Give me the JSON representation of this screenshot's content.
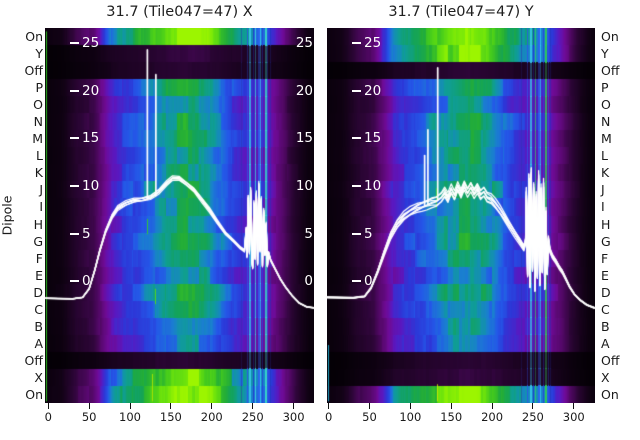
{
  "figure": {
    "background": "#ffffff",
    "ylabel": "Dipole",
    "row_labels": [
      "On",
      "Y",
      "Off",
      "P",
      "O",
      "N",
      "M",
      "L",
      "K",
      "J",
      "I",
      "H",
      "G",
      "F",
      "E",
      "D",
      "C",
      "B",
      "A",
      "Off",
      "X",
      "On"
    ],
    "colormap": [
      [
        0.0,
        "#020003"
      ],
      [
        0.1,
        "#140218"
      ],
      [
        0.2,
        "#2c0536"
      ],
      [
        0.3,
        "#55086a"
      ],
      [
        0.38,
        "#6f0b96"
      ],
      [
        0.45,
        "#5a18c0"
      ],
      [
        0.52,
        "#2c38d8"
      ],
      [
        0.58,
        "#2458e8"
      ],
      [
        0.63,
        "#1a7fd0"
      ],
      [
        0.68,
        "#0f9d97"
      ],
      [
        0.73,
        "#13a35c"
      ],
      [
        0.78,
        "#23ad38"
      ],
      [
        0.86,
        "#46cc1c"
      ],
      [
        0.93,
        "#72e60a"
      ],
      [
        1.0,
        "#9cf500"
      ]
    ],
    "line_color": "#ffffff"
  },
  "chart_data": [
    {
      "type": "heatmap",
      "title": "31.7 (Tile047=47) X",
      "polarization": "X",
      "x_ticks": [
        0,
        50,
        100,
        150,
        200,
        250,
        300
      ],
      "y_ticks": [
        25,
        20,
        15,
        10,
        5,
        0
      ],
      "x_range": [
        -4,
        325
      ],
      "y_range": [
        -12.8,
        26.6
      ],
      "right_edge_labels": true,
      "row_gains": [
        1.38,
        0.3,
        0.26,
        1.02,
        0.96,
        1.0,
        1.06,
        0.94,
        1.0,
        1.04,
        0.98,
        0.96,
        1.05,
        1.0,
        0.95,
        1.02,
        0.98,
        0.94,
        0.9,
        0.26,
        1.3,
        1.38
      ],
      "intensity_profile": [
        [
          -4,
          0.04
        ],
        [
          15,
          0.07
        ],
        [
          35,
          0.18
        ],
        [
          55,
          0.24
        ],
        [
          65,
          0.34
        ],
        [
          78,
          0.46
        ],
        [
          92,
          0.52
        ],
        [
          108,
          0.56
        ],
        [
          125,
          0.62
        ],
        [
          140,
          0.67
        ],
        [
          158,
          0.72
        ],
        [
          175,
          0.74
        ],
        [
          192,
          0.7
        ],
        [
          208,
          0.62
        ],
        [
          222,
          0.55
        ],
        [
          235,
          0.5
        ],
        [
          248,
          0.47
        ],
        [
          262,
          0.46
        ],
        [
          272,
          0.4
        ],
        [
          283,
          0.32
        ],
        [
          295,
          0.22
        ],
        [
          308,
          0.12
        ],
        [
          318,
          0.06
        ],
        [
          325,
          0.04
        ]
      ],
      "rfi_stripes": [
        {
          "x": 236,
          "color": "#2b36b0",
          "w": 1,
          "a": 0.5
        },
        {
          "x": 243,
          "color": "#2f55e8",
          "w": 1,
          "a": 0.85
        },
        {
          "x": 246,
          "color": "#38c8e8",
          "w": 2,
          "a": 0.9
        },
        {
          "x": 250,
          "color": "#2336c8",
          "w": 1,
          "a": 0.8
        },
        {
          "x": 253,
          "color": "#3fd8d8",
          "w": 1,
          "a": 0.85
        },
        {
          "x": 256,
          "color": "#2f62ee",
          "w": 2,
          "a": 0.9
        },
        {
          "x": 259,
          "color": "#35d0f0",
          "w": 1,
          "a": 0.8
        },
        {
          "x": 262,
          "color": "#2a42d8",
          "w": 1,
          "a": 0.85
        },
        {
          "x": 265,
          "color": "#38e0c4",
          "w": 2,
          "a": 0.9
        },
        {
          "x": 268,
          "color": "#2d55e0",
          "w": 1,
          "a": 0.8
        },
        {
          "x": 271,
          "color": "#2233b8",
          "w": 1,
          "a": 0.6
        }
      ],
      "green_marks": [
        {
          "x": -2.8,
          "r0": 0.2,
          "r1": 21.9,
          "color": "#2fd01e",
          "w": 1,
          "a": 0.9
        },
        {
          "x": 121,
          "r0": 11.2,
          "r1": 12.1,
          "color": "#35cc28",
          "w": 1,
          "a": 0.9
        },
        {
          "x": 130,
          "r0": 15.3,
          "r1": 16.2,
          "color": "#58dc10",
          "w": 1,
          "a": 0.9
        },
        {
          "x": 127,
          "r0": 20.3,
          "r1": 21.9,
          "color": "#b4e400",
          "w": 1,
          "a": 0.85
        }
      ],
      "line": {
        "bundle": 6,
        "spread": 4,
        "points": [
          [
            -4,
            -1.8
          ],
          [
            30,
            -1.85
          ],
          [
            42,
            -1.7
          ],
          [
            50,
            -0.8
          ],
          [
            57,
            1.2
          ],
          [
            63,
            3.2
          ],
          [
            70,
            5.2
          ],
          [
            78,
            6.8
          ],
          [
            85,
            7.7
          ],
          [
            95,
            8.2
          ],
          [
            105,
            8.5
          ],
          [
            115,
            8.6
          ],
          [
            125,
            8.8
          ],
          [
            135,
            9.4
          ],
          [
            145,
            10.3
          ],
          [
            152,
            10.8
          ],
          [
            160,
            10.8
          ],
          [
            168,
            10.3
          ],
          [
            178,
            9.6
          ],
          [
            188,
            8.5
          ],
          [
            197,
            7.5
          ],
          [
            207,
            6.2
          ],
          [
            217,
            5.0
          ],
          [
            227,
            4.2
          ],
          [
            235,
            3.5
          ],
          [
            240,
            3.2
          ],
          [
            242,
            5.5
          ],
          [
            243,
            2.6
          ],
          [
            244.5,
            8.8
          ],
          [
            246,
            3.0
          ],
          [
            247.5,
            9.6
          ],
          [
            249,
            2.2
          ],
          [
            250,
            1.4
          ],
          [
            251.5,
            8.2
          ],
          [
            253,
            2.4
          ],
          [
            254.5,
            9.2
          ],
          [
            256,
            1.8
          ],
          [
            257.5,
            10.2
          ],
          [
            259,
            3.2
          ],
          [
            260.5,
            8.6
          ],
          [
            262,
            1.6
          ],
          [
            263.5,
            7.4
          ],
          [
            265,
            2.8
          ],
          [
            266.5,
            6.0
          ],
          [
            268,
            1.6
          ],
          [
            269.5,
            3.0
          ],
          [
            272,
            2.2
          ],
          [
            278,
            1.2
          ],
          [
            284,
            0.2
          ],
          [
            290,
            -0.6
          ],
          [
            298,
            -1.5
          ],
          [
            307,
            -2.3
          ],
          [
            316,
            -2.7
          ],
          [
            325,
            -2.8
          ]
        ],
        "spikes": [
          {
            "x": 121.2,
            "base": 8.6,
            "top": 24.3
          },
          {
            "x": 131.6,
            "base": 9.0,
            "top": 21.7
          }
        ]
      }
    },
    {
      "type": "heatmap",
      "title": "31.7 (Tile047=47) Y",
      "polarization": "Y",
      "x_ticks": [
        0,
        50,
        100,
        150,
        200,
        250,
        300
      ],
      "y_ticks": [
        25,
        20,
        15,
        10,
        5,
        0
      ],
      "x_range": [
        -2,
        326
      ],
      "y_range": [
        -12.8,
        26.6
      ],
      "right_edge_labels": false,
      "row_gains": [
        1.38,
        1.32,
        0.26,
        1.0,
        0.95,
        1.03,
        0.97,
        1.01,
        0.95,
        1.05,
        1.0,
        0.96,
        1.04,
        0.99,
        0.94,
        1.02,
        0.97,
        0.93,
        0.9,
        0.26,
        0.3,
        1.38
      ],
      "intensity_profile": [
        [
          -4,
          0.04
        ],
        [
          15,
          0.07
        ],
        [
          35,
          0.18
        ],
        [
          55,
          0.24
        ],
        [
          65,
          0.34
        ],
        [
          78,
          0.46
        ],
        [
          92,
          0.52
        ],
        [
          108,
          0.56
        ],
        [
          125,
          0.62
        ],
        [
          140,
          0.67
        ],
        [
          158,
          0.72
        ],
        [
          175,
          0.74
        ],
        [
          192,
          0.7
        ],
        [
          208,
          0.62
        ],
        [
          222,
          0.55
        ],
        [
          235,
          0.5
        ],
        [
          248,
          0.47
        ],
        [
          262,
          0.46
        ],
        [
          272,
          0.4
        ],
        [
          283,
          0.32
        ],
        [
          295,
          0.22
        ],
        [
          308,
          0.12
        ],
        [
          318,
          0.06
        ],
        [
          326,
          0.04
        ]
      ],
      "rfi_stripes": [
        {
          "x": 236,
          "color": "#2b36b0",
          "w": 1,
          "a": 0.5
        },
        {
          "x": 243,
          "color": "#2f55e8",
          "w": 1,
          "a": 0.85
        },
        {
          "x": 246,
          "color": "#38c8e8",
          "w": 2,
          "a": 0.9
        },
        {
          "x": 250,
          "color": "#2336c8",
          "w": 1,
          "a": 0.8
        },
        {
          "x": 253,
          "color": "#34c86a",
          "w": 1,
          "a": 0.85
        },
        {
          "x": 256,
          "color": "#2f62ee",
          "w": 2,
          "a": 0.9
        },
        {
          "x": 259,
          "color": "#35d0f0",
          "w": 1,
          "a": 0.8
        },
        {
          "x": 262,
          "color": "#2a42d8",
          "w": 1,
          "a": 0.85
        },
        {
          "x": 265,
          "color": "#30d050",
          "w": 2,
          "a": 0.9
        },
        {
          "x": 268,
          "color": "#2d55e0",
          "w": 1,
          "a": 0.8
        },
        {
          "x": 271,
          "color": "#2233b8",
          "w": 1,
          "a": 0.6
        }
      ],
      "green_marks": [
        {
          "x": -1.2,
          "r0": 18.6,
          "r1": 21.9,
          "color": "#1fb4d8",
          "w": 1,
          "a": 0.9
        },
        {
          "x": 133,
          "r0": 20.9,
          "r1": 21.9,
          "color": "#cfe400",
          "w": 1,
          "a": 0.9
        },
        {
          "x": 132,
          "r0": 9.4,
          "r1": 10.6,
          "color": "#35cc28",
          "w": 1,
          "a": 0.9
        }
      ],
      "line": {
        "bundle": 7,
        "spread": 9,
        "points": [
          [
            -4,
            -1.7
          ],
          [
            30,
            -1.75
          ],
          [
            44,
            -1.6
          ],
          [
            52,
            -0.7
          ],
          [
            60,
            1.0
          ],
          [
            68,
            3.0
          ],
          [
            76,
            4.8
          ],
          [
            84,
            6.0
          ],
          [
            92,
            6.8
          ],
          [
            100,
            7.3
          ],
          [
            108,
            7.7
          ],
          [
            114,
            7.9
          ],
          [
            120,
            8.1
          ],
          [
            126,
            8.3
          ],
          [
            132,
            8.4
          ],
          [
            138,
            8.8
          ],
          [
            142,
            9.3
          ],
          [
            146,
            8.7
          ],
          [
            150,
            9.6
          ],
          [
            154,
            8.9
          ],
          [
            158,
            9.9
          ],
          [
            162,
            9.2
          ],
          [
            166,
            10.1
          ],
          [
            170,
            9.4
          ],
          [
            174,
            10.0
          ],
          [
            178,
            9.3
          ],
          [
            182,
            9.8
          ],
          [
            186,
            9.1
          ],
          [
            190,
            9.4
          ],
          [
            194,
            8.8
          ],
          [
            199,
            8.6
          ],
          [
            204,
            8.1
          ],
          [
            210,
            7.4
          ],
          [
            216,
            6.6
          ],
          [
            222,
            5.8
          ],
          [
            228,
            5.0
          ],
          [
            234,
            4.2
          ],
          [
            239,
            3.5
          ],
          [
            241,
            4.2
          ],
          [
            242,
            9.4
          ],
          [
            243.5,
            0.6
          ],
          [
            245,
            10.8
          ],
          [
            246.5,
            -0.6
          ],
          [
            248,
            11.4
          ],
          [
            249.5,
            1.2
          ],
          [
            251,
            9.8
          ],
          [
            252.5,
            -1.0
          ],
          [
            254,
            8.8
          ],
          [
            255.5,
            0.4
          ],
          [
            257,
            11.0
          ],
          [
            258.5,
            -0.4
          ],
          [
            260,
            9.6
          ],
          [
            261.5,
            1.0
          ],
          [
            263,
            10.2
          ],
          [
            264.5,
            -0.8
          ],
          [
            266,
            7.2
          ],
          [
            267.5,
            0.8
          ],
          [
            269,
            4.4
          ],
          [
            271,
            3.2
          ],
          [
            274,
            2.6
          ],
          [
            278,
            2.1
          ],
          [
            282,
            1.5
          ],
          [
            286,
            1.0
          ],
          [
            290,
            0.3
          ],
          [
            295,
            -0.6
          ],
          [
            301,
            -1.4
          ],
          [
            308,
            -2.0
          ],
          [
            316,
            -2.5
          ],
          [
            325,
            -2.8
          ]
        ],
        "spikes": [
          {
            "x": 117.5,
            "base": 7.9,
            "top": 13.2
          },
          {
            "x": 121.5,
            "base": 8.1,
            "top": 15.9
          },
          {
            "x": 133.5,
            "base": 8.5,
            "top": 22.4
          }
        ]
      }
    }
  ]
}
